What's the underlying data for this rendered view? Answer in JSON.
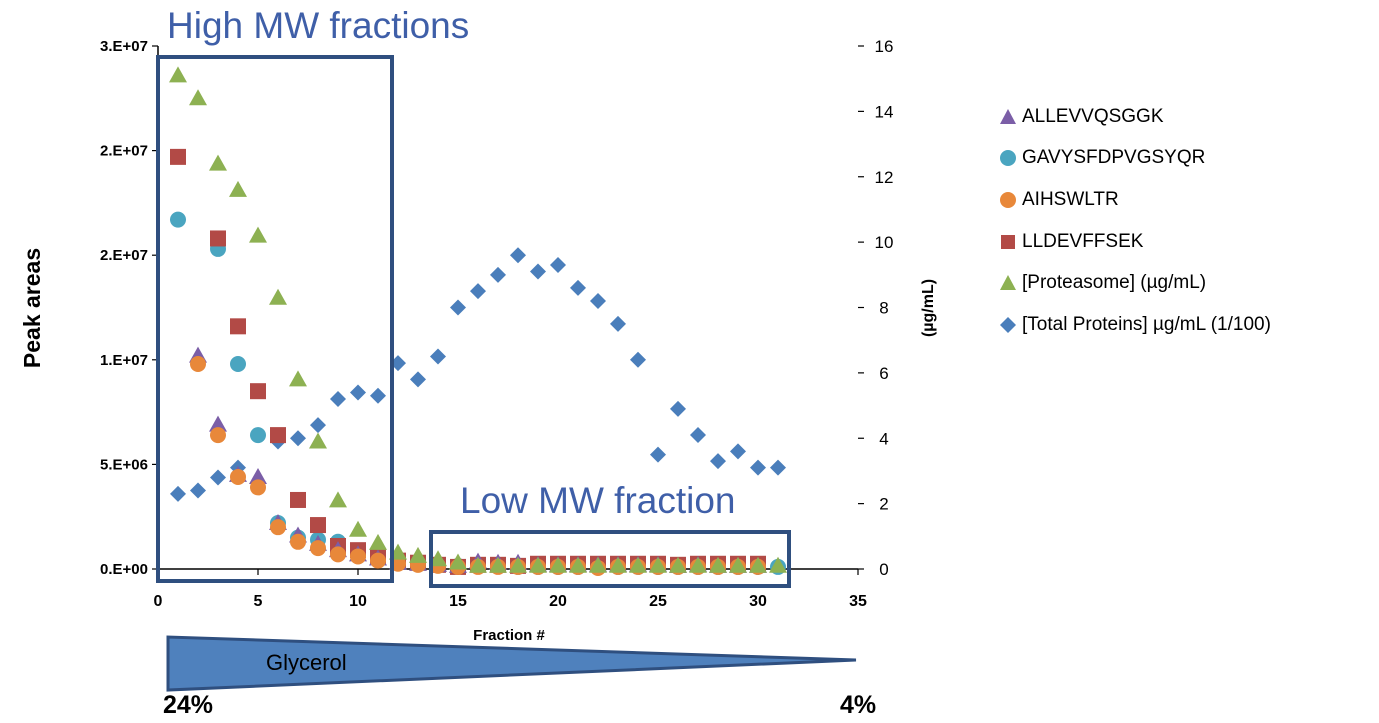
{
  "chart_data": {
    "type": "scatter",
    "title": "",
    "xlabel": "Fraction #",
    "ylabel": "Peak areas",
    "y2label": "(µg/mL)",
    "xlim": [
      0,
      35
    ],
    "ylim": [
      0,
      25000000
    ],
    "y2lim": [
      0,
      16
    ],
    "x_ticks": [
      0,
      5,
      10,
      15,
      20,
      25,
      30,
      35
    ],
    "y_ticks": [
      0,
      5000000,
      10000000,
      15000000,
      20000000,
      25000000
    ],
    "y_tick_labels": [
      "0.E+00",
      "5.E+06",
      "1.E+07",
      "2.E+07",
      "2.E+07",
      "3.E+07"
    ],
    "y2_ticks": [
      0,
      2,
      4,
      6,
      8,
      10,
      12,
      14,
      16
    ],
    "grid": false,
    "legend_position": "right",
    "annotations": {
      "high_mw": "High MW fractions",
      "low_mw": "Low MW fraction",
      "gradient_label": "Glycerol",
      "gradient_start": "24%",
      "gradient_end": "4%"
    },
    "colors": {
      "allevvqsggk": "#7b5ea7",
      "gavysfdpvgsyqr": "#4aa5c0",
      "aihswltr": "#e8883a",
      "lldevffsek": "#b24a46",
      "proteasome": "#8db152",
      "total_proteins": "#4a7ebb",
      "box": "#2f4f7f",
      "annotation_text": "#3f5fa8",
      "gradient": "#4f81bd"
    },
    "series": [
      {
        "name": "ALLEVVQSGGK",
        "axis": "left",
        "marker": "triangle",
        "color_key": "allevvqsggk",
        "x": [
          2,
          3,
          4,
          5,
          6,
          7,
          8,
          9,
          10,
          11,
          12,
          13,
          14,
          15,
          16,
          17,
          18,
          19,
          20,
          21,
          22,
          23,
          24,
          25,
          26,
          27,
          28,
          29,
          30
        ],
        "y": [
          10200000,
          6900000,
          4500000,
          4400000,
          2200000,
          1600000,
          1200000,
          900000,
          700000,
          500000,
          300000,
          250000,
          200000,
          150000,
          350000,
          300000,
          300000,
          200000,
          200000,
          200000,
          200000,
          200000,
          200000,
          200000,
          150000,
          200000,
          150000,
          150000,
          150000
        ]
      },
      {
        "name": "GAVYSFDPVGSYQR",
        "axis": "left",
        "marker": "circle",
        "color_key": "gavysfdpvgsyqr",
        "x": [
          1,
          3,
          4,
          5,
          6,
          7,
          8,
          9,
          10,
          11,
          12,
          13,
          14,
          15,
          16,
          17,
          18,
          19,
          20,
          21,
          22,
          23,
          24,
          25,
          26,
          27,
          28,
          29,
          30,
          31
        ],
        "y": [
          16700000,
          15300000,
          9800000,
          6400000,
          2200000,
          1500000,
          1400000,
          1300000,
          800000,
          500000,
          300000,
          250000,
          200000,
          150000,
          150000,
          150000,
          100000,
          100000,
          100000,
          100000,
          100000,
          100000,
          100000,
          100000,
          100000,
          100000,
          100000,
          100000,
          100000,
          100000
        ]
      },
      {
        "name": "AIHSWLTR",
        "axis": "left",
        "marker": "circle",
        "color_key": "aihswltr",
        "x": [
          2,
          3,
          4,
          5,
          6,
          7,
          8,
          9,
          10,
          11,
          12,
          13,
          14,
          15,
          16,
          17,
          18,
          19,
          20,
          21,
          22,
          23,
          24,
          25,
          26,
          27,
          28,
          29,
          30
        ],
        "y": [
          9800000,
          6400000,
          4400000,
          3900000,
          2000000,
          1300000,
          1000000,
          700000,
          600000,
          400000,
          250000,
          200000,
          150000,
          100000,
          100000,
          100000,
          100000,
          100000,
          100000,
          100000,
          50000,
          100000,
          100000,
          100000,
          100000,
          100000,
          100000,
          100000,
          100000
        ]
      },
      {
        "name": "LLDEVFFSEK",
        "axis": "left",
        "marker": "square",
        "color_key": "lldevffsek",
        "x": [
          1,
          3,
          4,
          5,
          6,
          7,
          8,
          9,
          10,
          11,
          12,
          13,
          14,
          15,
          16,
          17,
          18,
          19,
          20,
          21,
          22,
          23,
          24,
          25,
          26,
          27,
          28,
          29,
          30
        ],
        "y": [
          19700000,
          15800000,
          11600000,
          8500000,
          6400000,
          3300000,
          2100000,
          1100000,
          900000,
          600000,
          400000,
          300000,
          200000,
          100000,
          200000,
          200000,
          150000,
          250000,
          250000,
          250000,
          250000,
          250000,
          250000,
          250000,
          200000,
          250000,
          250000,
          250000,
          250000
        ]
      },
      {
        "name": "[Proteasome] (µg/mL)",
        "axis": "right",
        "marker": "triangle",
        "color_key": "proteasome",
        "x": [
          1,
          2,
          3,
          4,
          5,
          6,
          7,
          8,
          9,
          10,
          11,
          12,
          13,
          14,
          15,
          16,
          17,
          18,
          19,
          20,
          21,
          22,
          23,
          24,
          25,
          26,
          27,
          28,
          29,
          30,
          31
        ],
        "y": [
          15.1,
          14.4,
          12.4,
          11.6,
          10.2,
          8.3,
          5.8,
          3.9,
          2.1,
          1.2,
          0.8,
          0.5,
          0.4,
          0.3,
          0.2,
          0.1,
          0.1,
          0.1,
          0.1,
          0.1,
          0.1,
          0.1,
          0.1,
          0.1,
          0.1,
          0.1,
          0.1,
          0.1,
          0.1,
          0.1,
          0.1
        ]
      },
      {
        "name": "[Total Proteins] µg/mL (1/100)",
        "axis": "right",
        "marker": "diamond",
        "color_key": "total_proteins",
        "x": [
          1,
          2,
          3,
          4,
          5,
          6,
          7,
          8,
          9,
          10,
          11,
          12,
          13,
          14,
          15,
          16,
          17,
          18,
          19,
          20,
          21,
          22,
          23,
          24,
          25,
          26,
          27,
          28,
          29,
          30,
          31
        ],
        "y": [
          2.3,
          2.4,
          2.8,
          3.1,
          4.1,
          3.9,
          4.0,
          4.4,
          5.2,
          5.4,
          5.3,
          6.3,
          5.8,
          6.5,
          8.0,
          8.5,
          9.0,
          9.6,
          9.1,
          9.3,
          8.6,
          8.2,
          7.5,
          6.4,
          3.5,
          4.9,
          4.1,
          3.3,
          3.6,
          3.1,
          3.1
        ]
      }
    ]
  }
}
